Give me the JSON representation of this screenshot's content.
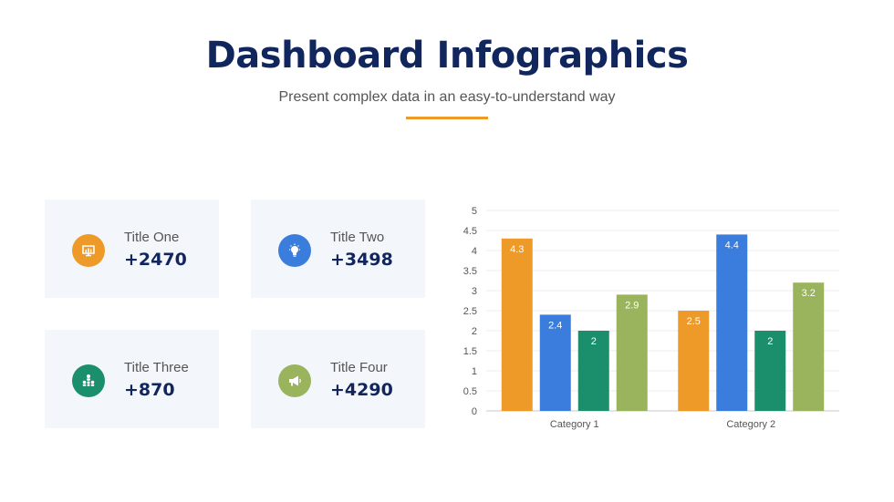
{
  "header": {
    "title": "Dashboard Infographics",
    "subtitle": "Present complex data in an easy-to-understand way",
    "accent_color": "#ee9a28"
  },
  "cards": [
    {
      "label": "Title One",
      "value": "+2470",
      "icon": "presentation-chart-icon",
      "color": "#ee9a28"
    },
    {
      "label": "Title Two",
      "value": "+3498",
      "icon": "lightbulb-icon",
      "color": "#3a7ddc"
    },
    {
      "label": "Title Three",
      "value": "+870",
      "icon": "team-hierarchy-icon",
      "color": "#1b8f6c"
    },
    {
      "label": "Title Four",
      "value": "+4290",
      "icon": "megaphone-icon",
      "color": "#9ab35d"
    }
  ],
  "chart_data": {
    "type": "bar",
    "categories": [
      "Category 1",
      "Category 2"
    ],
    "series": [
      {
        "values": [
          4.3,
          2.5
        ],
        "color": "#ee9a28"
      },
      {
        "values": [
          2.4,
          4.4
        ],
        "color": "#3a7ddc"
      },
      {
        "values": [
          2,
          2
        ],
        "color": "#1b8f6c"
      },
      {
        "values": [
          2.9,
          3.2
        ],
        "color": "#9ab35d"
      }
    ],
    "ylim": [
      0,
      5
    ],
    "yticks": [
      "0",
      "0.5",
      "1",
      "1.5",
      "2",
      "2.5",
      "3",
      "3.5",
      "4",
      "4.5",
      "5"
    ],
    "grid": true,
    "data_labels": true,
    "legend": "none"
  }
}
